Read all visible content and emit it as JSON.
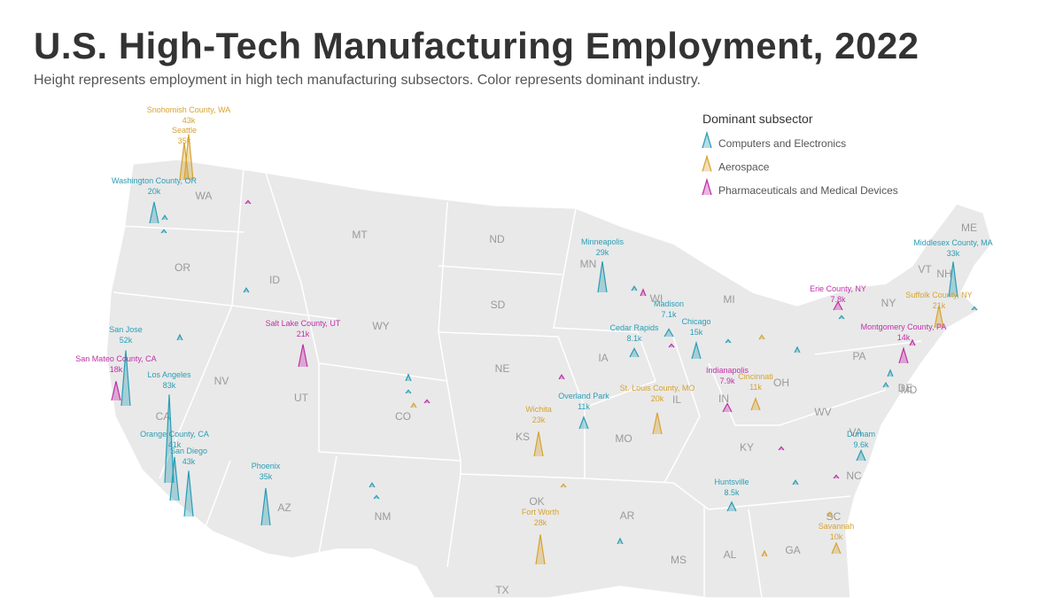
{
  "header": {
    "title": "U.S. High-Tech Manufacturing Employment, 2022",
    "subtitle": "Height represents employment in high tech manufacturing subsectors. Color represents dominant industry."
  },
  "legend": {
    "title": "Dominant subsector",
    "items": [
      {
        "label": "Computers and Electronics",
        "color": "#2a9db5"
      },
      {
        "label": "Aerospace",
        "color": "#d6a331"
      },
      {
        "label": "Pharmaceuticals and Medical Devices",
        "color": "#c02fa8"
      }
    ]
  },
  "state_labels": [
    "WA",
    "OR",
    "ID",
    "MT",
    "ND",
    "SD",
    "WY",
    "NE",
    "NV",
    "UT",
    "CO",
    "KS",
    "CA",
    "AZ",
    "NM",
    "OK",
    "TX",
    "MN",
    "WI",
    "IA",
    "MO",
    "IL",
    "MI",
    "IN",
    "OH",
    "KY",
    "AR",
    "MS",
    "AL",
    "GA",
    "SC",
    "NC",
    "VA",
    "WV",
    "PA",
    "NY",
    "VT",
    "NH",
    "ME",
    "MD",
    "DE"
  ],
  "sites": [
    {
      "name": "Snohomish County, WA",
      "value": 43000,
      "value_label": "43k",
      "industry": 1
    },
    {
      "name": "Seattle",
      "value": 35000,
      "value_label": "35k",
      "industry": 1
    },
    {
      "name": "Washington County, OR",
      "value": 20000,
      "value_label": "20k",
      "industry": 0
    },
    {
      "name": "San Jose",
      "value": 52000,
      "value_label": "52k",
      "industry": 0
    },
    {
      "name": "San Mateo County, CA",
      "value": 18000,
      "value_label": "18k",
      "industry": 2
    },
    {
      "name": "Los Angeles",
      "value": 83000,
      "value_label": "83k",
      "industry": 0
    },
    {
      "name": "Orange County, CA",
      "value": 41000,
      "value_label": "41k",
      "industry": 0
    },
    {
      "name": "San Diego",
      "value": 43000,
      "value_label": "43k",
      "industry": 0
    },
    {
      "name": "Salt Lake County, UT",
      "value": 21000,
      "value_label": "21k",
      "industry": 2
    },
    {
      "name": "Phoenix",
      "value": 35000,
      "value_label": "35k",
      "industry": 0
    },
    {
      "name": "Minneapolis",
      "value": 29000,
      "value_label": "29k",
      "industry": 0
    },
    {
      "name": "Madison",
      "value": 7100,
      "value_label": "7.1k",
      "industry": 0
    },
    {
      "name": "Cedar Rapids",
      "value": 8100,
      "value_label": "8.1k",
      "industry": 0
    },
    {
      "name": "Chicago",
      "value": 15000,
      "value_label": "15k",
      "industry": 0
    },
    {
      "name": "St. Louis County, MO",
      "value": 20000,
      "value_label": "20k",
      "industry": 1
    },
    {
      "name": "Wichita",
      "value": 23000,
      "value_label": "23k",
      "industry": 1
    },
    {
      "name": "Overland Park",
      "value": 11000,
      "value_label": "11k",
      "industry": 0
    },
    {
      "name": "Indianapolis",
      "value": 7900,
      "value_label": "7.9k",
      "industry": 2
    },
    {
      "name": "Cincinnati",
      "value": 11000,
      "value_label": "11k",
      "industry": 1
    },
    {
      "name": "Fort Worth",
      "value": 28000,
      "value_label": "28k",
      "industry": 1
    },
    {
      "name": "Huntsville",
      "value": 8500,
      "value_label": "8.5k",
      "industry": 0
    },
    {
      "name": "Durham",
      "value": 9600,
      "value_label": "9.6k",
      "industry": 0
    },
    {
      "name": "Savannah",
      "value": 10000,
      "value_label": "10k",
      "industry": 1
    },
    {
      "name": "Erie County, NY",
      "value": 7800,
      "value_label": "7.8k",
      "industry": 2
    },
    {
      "name": "Middlesex County, MA",
      "value": 33000,
      "value_label": "33k",
      "industry": 0
    },
    {
      "name": "Suffolk County, NY",
      "value": 21000,
      "value_label": "21k",
      "industry": 1
    },
    {
      "name": "Montgomery County, PA",
      "value": 14000,
      "value_label": "14k",
      "industry": 2
    }
  ],
  "minor_sites": [
    {
      "industry": 2,
      "value": 3000
    },
    {
      "industry": 0,
      "value": 4000
    },
    {
      "industry": 0,
      "value": 3000
    },
    {
      "industry": 0,
      "value": 4000
    },
    {
      "industry": 0,
      "value": 5000
    },
    {
      "industry": 0,
      "value": 6000
    },
    {
      "industry": 0,
      "value": 3000
    },
    {
      "industry": 1,
      "value": 4000
    },
    {
      "industry": 2,
      "value": 3000
    },
    {
      "industry": 0,
      "value": 4000
    },
    {
      "industry": 0,
      "value": 3000
    },
    {
      "industry": 2,
      "value": 4000
    },
    {
      "industry": 1,
      "value": 3000
    },
    {
      "industry": 0,
      "value": 5000
    },
    {
      "industry": 2,
      "value": 6000
    },
    {
      "industry": 0,
      "value": 4000
    },
    {
      "industry": 2,
      "value": 3000
    },
    {
      "industry": 0,
      "value": 3000
    },
    {
      "industry": 1,
      "value": 4000
    },
    {
      "industry": 0,
      "value": 5000
    },
    {
      "industry": 2,
      "value": 3000
    },
    {
      "industry": 0,
      "value": 4000
    },
    {
      "industry": 1,
      "value": 5000
    },
    {
      "industry": 0,
      "value": 3000
    },
    {
      "industry": 2,
      "value": 3000
    },
    {
      "industry": 0,
      "value": 4000
    },
    {
      "industry": 0,
      "value": 6000
    },
    {
      "industry": 2,
      "value": 5000
    },
    {
      "industry": 0,
      "value": 3000
    },
    {
      "industry": 1,
      "value": 4000
    }
  ]
}
